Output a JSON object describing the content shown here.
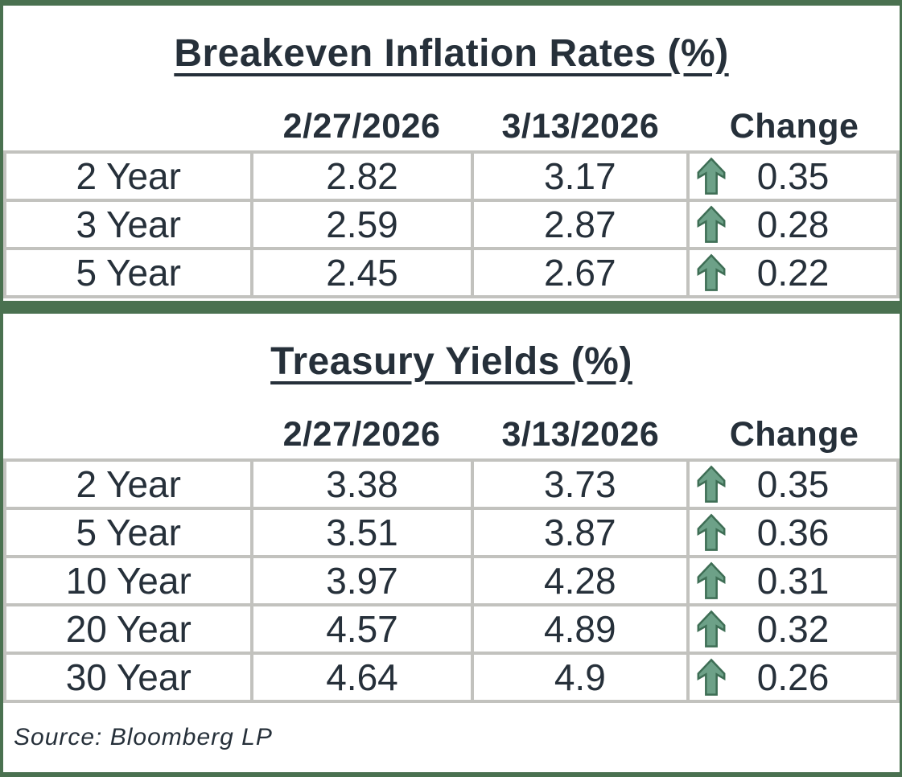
{
  "colors": {
    "accent_green": "#4a7150",
    "grid_gray": "#c2c2be",
    "text_dark": "#26303a",
    "arrow_fill": "#6da188",
    "arrow_stroke": "#3e6e55"
  },
  "source": {
    "text": "Source: Bloomberg LP"
  },
  "chart_data": [
    {
      "type": "table",
      "title": "Breakeven Inflation Rates (%)",
      "columns": [
        "",
        "2/27/2026",
        "3/13/2026",
        "Change"
      ],
      "rows": [
        {
          "label": "2 Year",
          "prev": "2.82",
          "curr": "3.17",
          "change": "0.35",
          "direction": "up"
        },
        {
          "label": "3 Year",
          "prev": "2.59",
          "curr": "2.87",
          "change": "0.28",
          "direction": "up"
        },
        {
          "label": "5 Year",
          "prev": "2.45",
          "curr": "2.67",
          "change": "0.22",
          "direction": "up"
        }
      ]
    },
    {
      "type": "table",
      "title": "Treasury Yields (%)",
      "columns": [
        "",
        "2/27/2026",
        "3/13/2026",
        "Change"
      ],
      "rows": [
        {
          "label": "2 Year",
          "prev": "3.38",
          "curr": "3.73",
          "change": "0.35",
          "direction": "up"
        },
        {
          "label": "5 Year",
          "prev": "3.51",
          "curr": "3.87",
          "change": "0.36",
          "direction": "up"
        },
        {
          "label": "10 Year",
          "prev": "3.97",
          "curr": "4.28",
          "change": "0.31",
          "direction": "up"
        },
        {
          "label": "20 Year",
          "prev": "4.57",
          "curr": "4.89",
          "change": "0.32",
          "direction": "up"
        },
        {
          "label": "30 Year",
          "prev": "4.64",
          "curr": "4.9",
          "change": "0.26",
          "direction": "up"
        }
      ]
    }
  ]
}
